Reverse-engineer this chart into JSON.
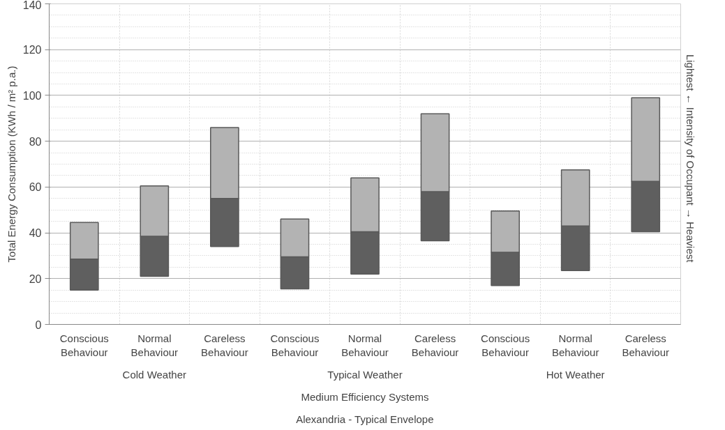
{
  "chart_data": {
    "type": "bar",
    "ylabel": "Total Energy Consumption (KWh / m² p.a.)",
    "y2label": "Lightest  ←  Intensity of Occupant  →  Heaviest",
    "categories": [
      "Conscious Behaviour",
      "Normal Behaviour",
      "Careless Behaviour",
      "Conscious Behaviour",
      "Normal Behaviour",
      "Careless Behaviour",
      "Conscious Behaviour",
      "Normal Behaviour",
      "Careless Behaviour"
    ],
    "series": [
      {
        "color": "#5f5f5f",
        "base": [
          15,
          21,
          34,
          15.5,
          22,
          36.5,
          17,
          23.5,
          40.5
        ],
        "values": [
          13.5,
          17.5,
          21,
          14,
          18.5,
          21.5,
          14.5,
          19.5,
          22
        ]
      },
      {
        "color": "#b3b3b3",
        "base": [
          28.5,
          38.5,
          55,
          29.5,
          40.5,
          58,
          31.5,
          43,
          62.5
        ],
        "values": [
          16,
          22,
          31,
          16.5,
          23.5,
          34,
          18,
          24.5,
          36.5
        ]
      }
    ],
    "ylim": [
      0,
      140
    ],
    "yticks": [
      0,
      20,
      40,
      60,
      80,
      100,
      120,
      140
    ],
    "grid": true,
    "annotations": [
      "Cold Weather",
      "Typical Weather",
      "Hot Weather",
      "Medium Efficiency Systems",
      "Alexandria - Typical Envelope"
    ]
  }
}
